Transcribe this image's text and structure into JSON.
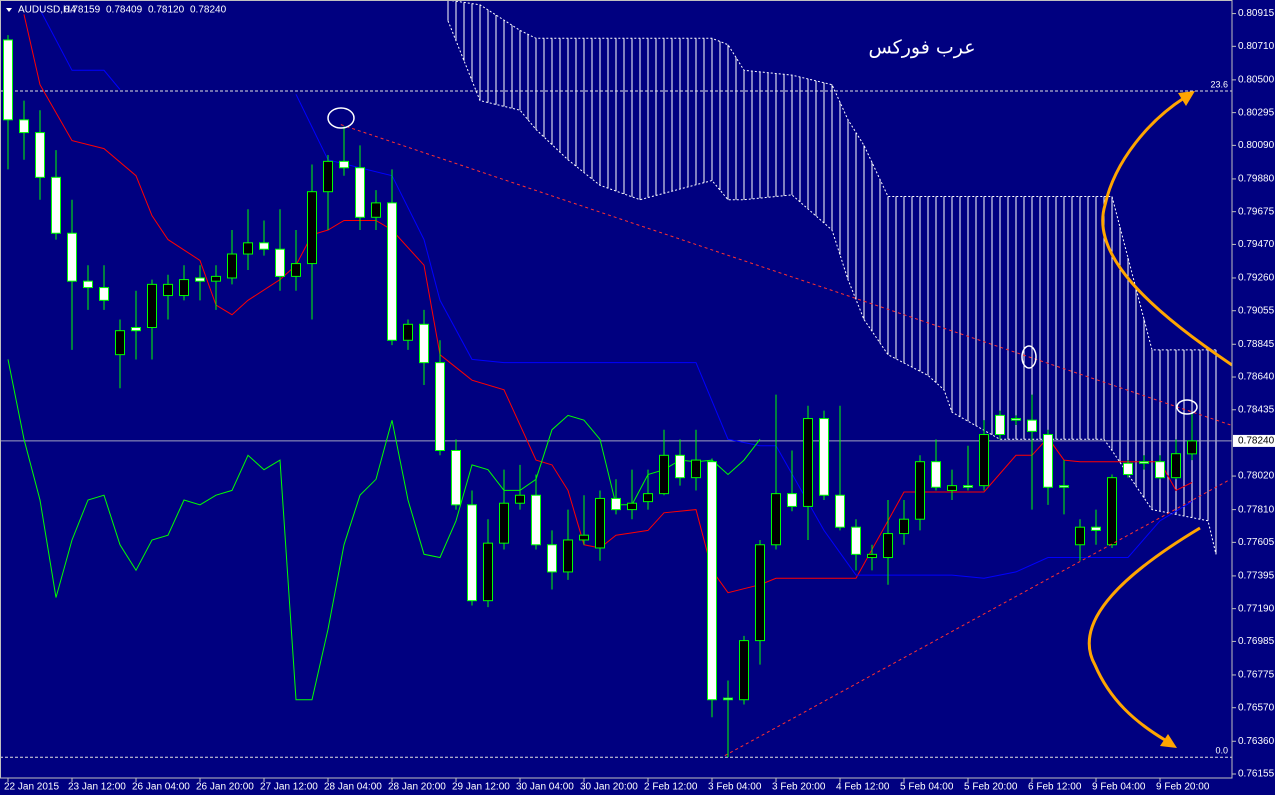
{
  "chart_data": {
    "type": "candlestick",
    "title": "AUDUSD,H4",
    "quote": [
      "0.78159",
      "0.78409",
      "0.78120",
      "0.78240"
    ],
    "annotation": "عرب فوركس",
    "bull_color": "#000000",
    "bull_edge": "#00ff00",
    "bear_color": "#ffffff",
    "bear_edge": "#00ff00",
    "categories": [
      "22 Jan 2015",
      null,
      null,
      null,
      "23 Jan 12:00",
      null,
      null,
      null,
      "26 Jan 04:00",
      null,
      null,
      null,
      "26 Jan 20:00",
      null,
      null,
      null,
      "27 Jan 12:00",
      null,
      null,
      null,
      "28 Jan 04:00",
      null,
      null,
      null,
      "28 Jan 20:00",
      null,
      null,
      null,
      "29 Jan 12:00",
      null,
      null,
      null,
      "30 Jan 04:00",
      null,
      null,
      null,
      "30 Jan 20:00",
      null,
      null,
      null,
      "2 Feb 12:00",
      null,
      null,
      null,
      "3 Feb 04:00",
      null,
      null,
      null,
      "3 Feb 20:00",
      null,
      null,
      null,
      "4 Feb 12:00",
      null,
      null,
      null,
      "5 Feb 04:00",
      null,
      null,
      null,
      "5 Feb 20:00",
      null,
      null,
      null,
      "6 Feb 12:00",
      null,
      null,
      null,
      "9 Feb 04:00",
      null,
      null,
      null,
      "9 Feb 20:00",
      null,
      null
    ],
    "open": [
      0.8075,
      0.8025,
      0.8017,
      0.7989,
      0.7954,
      0.7924,
      0.792,
      0.7878,
      0.7895,
      0.7895,
      0.7915,
      0.7915,
      0.7926,
      0.7924,
      0.7926,
      0.7941,
      0.7948,
      0.7944,
      0.7927,
      0.7935,
      0.798,
      0.7999,
      0.7995,
      0.7964,
      0.7973,
      0.7887,
      0.7897,
      0.7873,
      0.7818,
      0.7784,
      0.7724,
      0.776,
      0.7785,
      0.779,
      0.7759,
      0.7742,
      0.7762,
      0.7757,
      0.7788,
      0.7781,
      0.7786,
      0.7791,
      0.7815,
      0.7801,
      0.7811,
      0.7663,
      0.7662,
      0.7699,
      0.7759,
      0.7791,
      0.7783,
      0.7838,
      0.779,
      0.777,
      0.7751,
      0.7751,
      0.7766,
      0.7775,
      0.7811,
      0.7793,
      0.7796,
      0.7796,
      0.784,
      0.7838,
      0.7837,
      0.7828,
      0.7796,
      0.7759,
      0.777,
      0.7759,
      0.781,
      0.7811,
      0.7811,
      0.7801,
      0.78159
    ],
    "high": [
      0.8078,
      0.8037,
      0.8031,
      0.8006,
      0.7975,
      0.7934,
      0.7934,
      0.79,
      0.7918,
      0.7925,
      0.7928,
      0.7934,
      0.7934,
      0.7934,
      0.7956,
      0.7969,
      0.7962,
      0.7969,
      0.7956,
      0.7997,
      0.8003,
      0.8021,
      0.8009,
      0.7981,
      0.7994,
      0.79,
      0.7906,
      0.7887,
      0.7825,
      0.7793,
      0.7775,
      0.7806,
      0.7809,
      0.7803,
      0.7768,
      0.7781,
      0.779,
      0.7793,
      0.78,
      0.7806,
      0.7806,
      0.7831,
      0.7825,
      0.7831,
      0.7813,
      0.7674,
      0.7702,
      0.7762,
      0.7853,
      0.7818,
      0.7846,
      0.7843,
      0.7846,
      0.7775,
      0.7759,
      0.7787,
      0.7787,
      0.7815,
      0.7825,
      0.7806,
      0.7821,
      0.7837,
      0.7843,
      0.784,
      0.7853,
      0.7831,
      0.7812,
      0.7775,
      0.7781,
      0.7803,
      0.7812,
      0.7815,
      0.7815,
      0.7825,
      0.78409
    ],
    "low": [
      0.7994,
      0.8,
      0.7975,
      0.795,
      0.7881,
      0.7906,
      0.7906,
      0.7857,
      0.7875,
      0.7875,
      0.79,
      0.7912,
      0.7912,
      0.7906,
      0.7922,
      0.7931,
      0.794,
      0.7918,
      0.7918,
      0.79,
      0.7956,
      0.799,
      0.7956,
      0.7956,
      0.7884,
      0.7881,
      0.7859,
      0.7815,
      0.7781,
      0.7721,
      0.772,
      0.7756,
      0.7781,
      0.7756,
      0.7731,
      0.7737,
      0.7759,
      0.7749,
      0.7778,
      0.7775,
      0.7781,
      0.779,
      0.7796,
      0.7793,
      0.7651,
      0.7626,
      0.7659,
      0.7684,
      0.7756,
      0.778,
      0.7762,
      0.7787,
      0.7768,
      0.7743,
      0.7743,
      0.7734,
      0.7759,
      0.7768,
      0.7793,
      0.7787,
      0.7793,
      0.7793,
      0.7825,
      0.7834,
      0.7781,
      0.7784,
      0.7778,
      0.7749,
      0.7759,
      0.7757,
      0.7801,
      0.7806,
      0.78,
      0.78,
      0.7812
    ],
    "close": [
      0.8025,
      0.8017,
      0.7989,
      0.7954,
      0.7924,
      0.792,
      0.7912,
      0.7893,
      0.7893,
      0.7922,
      0.7922,
      0.7925,
      0.7924,
      0.7927,
      0.7941,
      0.7948,
      0.7944,
      0.7927,
      0.7935,
      0.798,
      0.7999,
      0.7995,
      0.7964,
      0.7973,
      0.7887,
      0.7897,
      0.7873,
      0.7818,
      0.7784,
      0.7724,
      0.776,
      0.7785,
      0.779,
      0.7759,
      0.7742,
      0.7762,
      0.7765,
      0.7788,
      0.7781,
      0.7785,
      0.7791,
      0.7815,
      0.7801,
      0.7812,
      0.7662,
      0.7662,
      0.7699,
      0.7759,
      0.7791,
      0.7783,
      0.7838,
      0.779,
      0.777,
      0.7753,
      0.7753,
      0.7766,
      0.7775,
      0.7811,
      0.7795,
      0.7796,
      0.7795,
      0.7828,
      0.7828,
      0.7837,
      0.783,
      0.7795,
      0.7795,
      0.777,
      0.7768,
      0.7801,
      0.7803,
      0.781,
      0.7801,
      0.7816,
      0.7824
    ],
    "lines": [
      {
        "color": "#ff0000",
        "x": [
          1,
          2,
          4,
          6,
          8,
          9,
          10,
          12,
          13,
          14,
          15,
          17,
          18,
          19,
          20,
          21,
          23,
          24,
          26,
          27,
          29,
          31,
          33,
          34,
          35,
          36,
          37,
          38,
          40,
          41,
          43,
          44,
          45,
          47,
          48,
          53,
          55,
          56,
          61,
          63,
          64,
          65,
          66,
          67,
          72,
          73,
          74
        ],
        "values": [
          0.8091,
          0.8047,
          0.8012,
          0.8007,
          0.799,
          0.7965,
          0.795,
          0.7937,
          0.7909,
          0.7903,
          0.7912,
          0.7925,
          0.7934,
          0.7953,
          0.7956,
          0.7962,
          0.7962,
          0.7956,
          0.7934,
          0.7878,
          0.7862,
          0.7856,
          0.7812,
          0.7809,
          0.7793,
          0.7759,
          0.7757,
          0.7765,
          0.7768,
          0.7779,
          0.7781,
          0.7743,
          0.7729,
          0.7734,
          0.7738,
          0.7738,
          0.7774,
          0.7792,
          0.7792,
          0.7815,
          0.7815,
          0.7826,
          0.7812,
          0.7811,
          0.7811,
          0.7793,
          0.7798
        ]
      },
      {
        "color": "#0000ff",
        "x": [
          2,
          4,
          6,
          7,
          12,
          18,
          20,
          24,
          26,
          27,
          29,
          31,
          43,
          45,
          47,
          48,
          51,
          53,
          59,
          61,
          63,
          65,
          70,
          72,
          74
        ],
        "values": [
          0.8094,
          0.8056,
          0.8056,
          0.8044,
          null,
          0.8041,
          0.8,
          0.799,
          0.795,
          0.7912,
          0.7875,
          0.7873,
          0.7873,
          0.7825,
          0.7821,
          0.7821,
          0.7768,
          0.774,
          0.774,
          0.7738,
          0.7742,
          0.7751,
          0.7751,
          0.7774,
          0.7786
        ]
      },
      {
        "color": "#00ff00",
        "x": [
          0,
          1,
          2,
          3,
          4,
          5,
          6,
          7,
          8,
          9,
          10,
          11,
          12,
          13,
          14,
          15,
          16,
          17,
          18,
          19,
          20,
          21,
          22,
          23,
          24,
          25,
          26,
          27,
          28,
          29,
          30,
          31,
          32,
          33,
          34,
          35,
          36,
          37,
          38,
          39,
          40,
          41,
          42,
          43,
          44,
          45,
          46,
          47
        ],
        "values": [
          0.7875,
          0.7825,
          0.7787,
          0.7726,
          0.7762,
          0.7787,
          0.779,
          0.7759,
          0.7743,
          0.7762,
          0.7765,
          0.7787,
          0.7784,
          0.779,
          0.7793,
          0.7815,
          0.7806,
          0.7812,
          0.7662,
          0.7662,
          0.7706,
          0.7759,
          0.779,
          0.78,
          0.7837,
          0.7787,
          0.7753,
          0.7751,
          0.7774,
          0.7809,
          0.7806,
          0.7793,
          0.7793,
          0.78,
          0.7831,
          0.784,
          0.7837,
          0.7825,
          0.7784,
          0.7784,
          0.7803,
          0.7806,
          0.7812,
          0.7811,
          0.7812,
          0.7803,
          0.7812,
          0.7825
        ]
      }
    ],
    "cloud": {
      "color": "#ffffff",
      "x": [
        27.5,
        29.5,
        32,
        33,
        35,
        37,
        39.5,
        44,
        45,
        46,
        49,
        51.5,
        52.5,
        53.5,
        55,
        57.5,
        58.5,
        59,
        62,
        68.5,
        69,
        71.5,
        75,
        75.5
      ],
      "upper": [
        0.81,
        0.8097,
        0.8081,
        0.8076,
        0.8076,
        0.8076,
        0.8076,
        0.8076,
        0.8072,
        0.8056,
        0.8053,
        0.8047,
        0.8025,
        0.8009,
        0.7977,
        0.7977,
        0.7977,
        0.7977,
        0.7977,
        0.7977,
        0.7977,
        0.7881,
        0.7881,
        0.7881
      ],
      "lower": [
        0.8087,
        0.8037,
        0.8031,
        0.8019,
        0.8,
        0.7984,
        0.7975,
        0.7987,
        0.7975,
        0.7975,
        0.7978,
        0.7956,
        0.7925,
        0.79,
        0.7878,
        0.7865,
        0.7856,
        0.7842,
        0.7825,
        0.7825,
        0.7818,
        0.7781,
        0.7774,
        0.7753
      ]
    },
    "trendlines": [
      {
        "color": "#ff3030",
        "x": [
          20.8,
          76.4
        ],
        "values": [
          0.8022,
          0.7834
        ]
      },
      {
        "color": "#ff3030",
        "x": [
          44.8,
          76.4
        ],
        "values": [
          0.7627,
          0.78
        ]
      }
    ],
    "fib_levels": [
      {
        "price": 0.8043,
        "label": "23.6"
      },
      {
        "price": 0.7626,
        "label": "0.0"
      }
    ],
    "price_tag": {
      "value": 0.7824,
      "label": "0.78240"
    },
    "xlim": [
      -0.5,
      76.5
    ],
    "ylim": [
      0.7613,
      0.81
    ],
    "yticks": [
      0.80915,
      {
        "value": 0.8071,
        "label": "0.80710"
      },
      {
        "value": 0.805,
        "label": "0.80500"
      },
      0.80295,
      {
        "value": 0.8009,
        "label": "0.80090"
      },
      {
        "value": 0.7988,
        "label": "0.79880"
      },
      0.79675,
      {
        "value": 0.7947,
        "label": "0.79470"
      },
      {
        "value": 0.7926,
        "label": "0.79260"
      },
      0.79055,
      0.78845,
      {
        "value": 0.7864,
        "label": "0.78640"
      },
      0.78435,
      {
        "value": 0.7802,
        "label": "0.78020"
      },
      {
        "value": 0.7781,
        "label": "0.77810"
      },
      0.77605,
      0.77395,
      {
        "value": 0.7719,
        "label": "0.77190"
      },
      0.76985,
      0.76775,
      {
        "value": 0.7657,
        "label": "0.76570"
      },
      {
        "value": 0.7636,
        "label": "0.76360"
      },
      0.76155
    ]
  }
}
